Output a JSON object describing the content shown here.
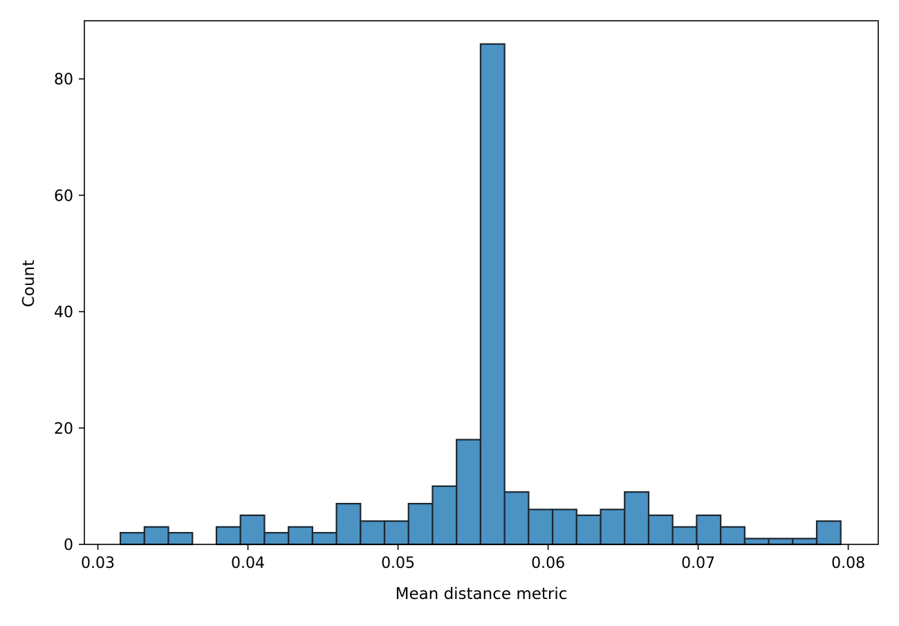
{
  "chart_data": {
    "type": "bar",
    "subtype": "histogram",
    "title": "",
    "xlabel": "Mean distance metric",
    "ylabel": "Count",
    "xlim": [
      0.0291,
      0.082
    ],
    "ylim": [
      0,
      90
    ],
    "x_ticks": [
      0.03,
      0.04,
      0.05,
      0.06,
      0.07,
      0.08
    ],
    "x_tick_labels": [
      "0.03",
      "0.04",
      "0.05",
      "0.06",
      "0.07",
      "0.08"
    ],
    "y_ticks": [
      0,
      20,
      40,
      60,
      80
    ],
    "y_tick_labels": [
      "0",
      "20",
      "40",
      "60",
      "80"
    ],
    "bin_start": 0.0315,
    "bin_width": 0.0016,
    "counts": [
      2,
      3,
      2,
      0,
      3,
      5,
      2,
      3,
      2,
      7,
      4,
      4,
      7,
      10,
      18,
      86,
      9,
      6,
      6,
      5,
      6,
      9,
      5,
      3,
      5,
      3,
      1,
      1,
      1,
      4
    ],
    "bar_color": "#4c92c3",
    "edge_color": "#1b2730",
    "grid": false,
    "legend": "none"
  }
}
